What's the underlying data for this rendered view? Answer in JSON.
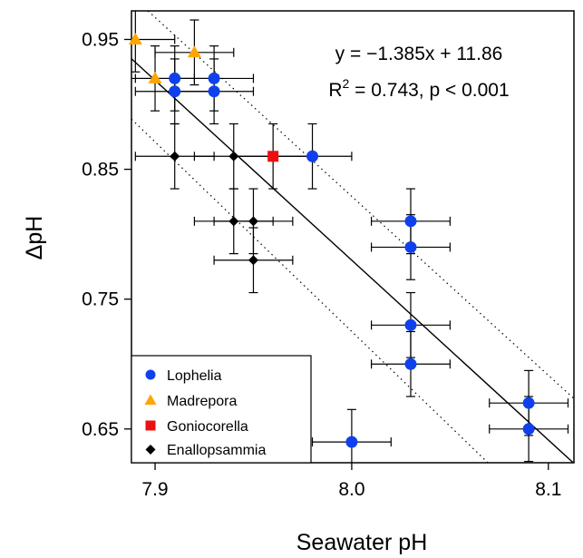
{
  "chart_data": {
    "type": "scatter",
    "xlabel": "Seawater pH",
    "ylabel": "ΔpH",
    "xlim": [
      7.888,
      8.113
    ],
    "ylim": [
      0.624,
      0.972
    ],
    "x_ticks": [
      "7.9",
      "8.0",
      "8.1"
    ],
    "x_tick_values": [
      7.9,
      8.0,
      8.1
    ],
    "y_ticks": [
      "0.95",
      "0.85",
      "0.75",
      "0.65"
    ],
    "y_tick_values": [
      0.95,
      0.85,
      0.75,
      0.65
    ],
    "grid": false,
    "legend_position": "bottom-left",
    "annotation_line1": "y = −1.385x + 11.86",
    "annotation_line2_prefix": "R",
    "annotation_line2_sup": "2",
    "annotation_line2_suffix": " = 0.743, p < 0.001",
    "regression": {
      "slope": -1.385,
      "intercept": 11.86
    },
    "confidence_band": {
      "upper": [
        [
          7.9,
          0.967
        ],
        [
          8.085,
          0.712
        ]
      ],
      "lower": [
        [
          7.885,
          0.893
        ],
        [
          8.072,
          0.62
        ]
      ]
    },
    "series": [
      {
        "name": "Lophelia",
        "marker": "circle",
        "color": "#1040ee",
        "points": [
          {
            "x": 7.91,
            "y": 0.92,
            "xerr": 0.02,
            "yerr": 0.025
          },
          {
            "x": 7.93,
            "y": 0.92,
            "xerr": 0.02,
            "yerr": 0.025
          },
          {
            "x": 7.91,
            "y": 0.91,
            "xerr": 0.02,
            "yerr": 0.025
          },
          {
            "x": 7.93,
            "y": 0.91,
            "xerr": 0.02,
            "yerr": 0.025
          },
          {
            "x": 7.98,
            "y": 0.86,
            "xerr": 0.02,
            "yerr": 0.025
          },
          {
            "x": 8.03,
            "y": 0.81,
            "xerr": 0.02,
            "yerr": 0.025
          },
          {
            "x": 8.03,
            "y": 0.79,
            "xerr": 0.02,
            "yerr": 0.025
          },
          {
            "x": 8.03,
            "y": 0.73,
            "xerr": 0.02,
            "yerr": 0.025
          },
          {
            "x": 8.03,
            "y": 0.7,
            "xerr": 0.02,
            "yerr": 0.025
          },
          {
            "x": 8.0,
            "y": 0.64,
            "xerr": 0.02,
            "yerr": 0.025
          },
          {
            "x": 8.09,
            "y": 0.67,
            "xerr": 0.02,
            "yerr": 0.025
          },
          {
            "x": 8.09,
            "y": 0.65,
            "xerr": 0.02,
            "yerr": 0.025
          }
        ]
      },
      {
        "name": "Madrepora",
        "marker": "triangle",
        "color": "#ffa500",
        "points": [
          {
            "x": 7.89,
            "y": 0.95,
            "xerr": 0.02,
            "yerr": 0.025
          },
          {
            "x": 7.92,
            "y": 0.94,
            "xerr": 0.02,
            "yerr": 0.025
          },
          {
            "x": 7.9,
            "y": 0.92,
            "xerr": 0.02,
            "yerr": 0.025
          }
        ]
      },
      {
        "name": "Goniocorella",
        "marker": "square",
        "color": "#ee1010",
        "points": [
          {
            "x": 7.96,
            "y": 0.86,
            "xerr": 0.02,
            "yerr": 0.025
          }
        ]
      },
      {
        "name": "Enallopsammia",
        "marker": "diamond",
        "color": "#000000",
        "points": [
          {
            "x": 7.91,
            "y": 0.86,
            "xerr": 0.02,
            "yerr": 0.025
          },
          {
            "x": 7.94,
            "y": 0.86,
            "xerr": 0.02,
            "yerr": 0.025
          },
          {
            "x": 7.94,
            "y": 0.81,
            "xerr": 0.02,
            "yerr": 0.025
          },
          {
            "x": 7.95,
            "y": 0.81,
            "xerr": 0.02,
            "yerr": 0.025
          },
          {
            "x": 7.95,
            "y": 0.78,
            "xerr": 0.02,
            "yerr": 0.025
          }
        ]
      }
    ]
  }
}
